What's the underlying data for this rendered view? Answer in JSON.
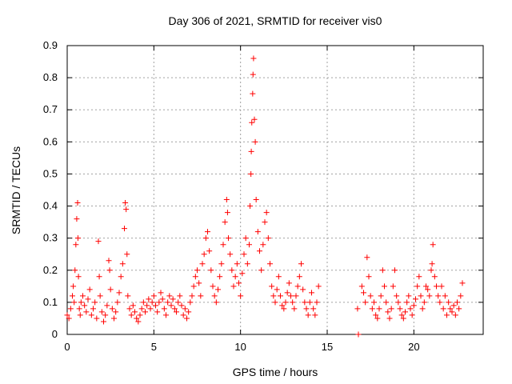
{
  "chart_data": {
    "type": "scatter",
    "title": "Day 306 of 2021, SRMTID for receiver vis0",
    "xlabel": "GPS time / hours",
    "ylabel": "SRMTID / TECUs",
    "xlim": [
      0,
      24
    ],
    "ylim": [
      0,
      0.9
    ],
    "x_ticks": [
      0,
      5,
      10,
      15,
      20
    ],
    "x_tick_labels": [
      "0",
      "5",
      "10",
      "15",
      "20"
    ],
    "y_ticks": [
      0,
      0.1,
      0.2,
      0.3,
      0.4,
      0.5,
      0.6,
      0.7,
      0.8,
      0.9
    ],
    "y_tick_labels": [
      "0",
      "0.1",
      "0.2",
      "0.3",
      "0.4",
      "0.5",
      "0.6",
      "0.7",
      "0.8",
      "0.9"
    ],
    "grid": true,
    "marker": "+",
    "color": "#ff0000",
    "series": [
      {
        "name": "vis0",
        "x": [
          0.0,
          0.1,
          0.2,
          0.3,
          0.35,
          0.4,
          0.45,
          0.5,
          0.55,
          0.6,
          0.62,
          0.65,
          0.7,
          0.75,
          0.8,
          0.9,
          1.0,
          1.1,
          1.2,
          1.3,
          1.4,
          1.5,
          1.6,
          1.7,
          1.8,
          1.85,
          1.9,
          2.0,
          2.1,
          2.2,
          2.3,
          2.4,
          2.45,
          2.5,
          2.6,
          2.7,
          2.8,
          2.9,
          3.0,
          3.1,
          3.2,
          3.3,
          3.35,
          3.4,
          3.45,
          3.5,
          3.6,
          3.7,
          3.8,
          3.9,
          4.0,
          4.1,
          4.2,
          4.3,
          4.4,
          4.5,
          4.6,
          4.7,
          4.8,
          4.9,
          5.0,
          5.1,
          5.2,
          5.3,
          5.4,
          5.5,
          5.6,
          5.7,
          5.8,
          5.9,
          6.0,
          6.1,
          6.2,
          6.3,
          6.4,
          6.5,
          6.6,
          6.7,
          6.8,
          6.9,
          7.0,
          7.1,
          7.2,
          7.3,
          7.4,
          7.5,
          7.6,
          7.7,
          7.8,
          7.9,
          8.0,
          8.1,
          8.2,
          8.3,
          8.4,
          8.5,
          8.6,
          8.7,
          8.8,
          8.9,
          9.0,
          9.1,
          9.2,
          9.25,
          9.3,
          9.4,
          9.5,
          9.6,
          9.7,
          9.8,
          9.9,
          10.0,
          10.1,
          10.2,
          10.3,
          10.4,
          10.5,
          10.55,
          10.6,
          10.62,
          10.65,
          10.7,
          10.72,
          10.75,
          10.8,
          10.85,
          10.9,
          11.0,
          11.1,
          11.2,
          11.3,
          11.4,
          11.5,
          11.6,
          11.7,
          11.8,
          11.9,
          12.0,
          12.1,
          12.2,
          12.3,
          12.4,
          12.5,
          12.6,
          12.7,
          12.8,
          12.9,
          13.0,
          13.1,
          13.2,
          13.3,
          13.4,
          13.5,
          13.6,
          13.7,
          13.8,
          13.9,
          14.0,
          14.1,
          14.2,
          14.3,
          14.4,
          14.5,
          16.75,
          16.8,
          17.0,
          17.1,
          17.2,
          17.3,
          17.4,
          17.5,
          17.6,
          17.7,
          17.8,
          17.9,
          18.0,
          18.1,
          18.2,
          18.3,
          18.4,
          18.5,
          18.6,
          18.7,
          18.8,
          18.9,
          19.0,
          19.1,
          19.2,
          19.3,
          19.4,
          19.5,
          19.6,
          19.7,
          19.8,
          19.9,
          20.0,
          20.1,
          20.2,
          20.3,
          20.4,
          20.5,
          20.6,
          20.7,
          20.8,
          20.9,
          21.0,
          21.05,
          21.1,
          21.2,
          21.3,
          21.4,
          21.5,
          21.6,
          21.7,
          21.8,
          21.9,
          22.0,
          22.1,
          22.2,
          22.3,
          22.4,
          22.5,
          22.6,
          22.7,
          22.8
        ],
        "y": [
          0.06,
          0.05,
          0.08,
          0.12,
          0.15,
          0.1,
          0.2,
          0.28,
          0.36,
          0.41,
          0.3,
          0.18,
          0.08,
          0.06,
          0.1,
          0.12,
          0.09,
          0.07,
          0.11,
          0.14,
          0.06,
          0.08,
          0.1,
          0.05,
          0.29,
          0.18,
          0.12,
          0.07,
          0.04,
          0.06,
          0.09,
          0.23,
          0.2,
          0.14,
          0.08,
          0.05,
          0.07,
          0.1,
          0.13,
          0.18,
          0.22,
          0.33,
          0.41,
          0.39,
          0.25,
          0.12,
          0.08,
          0.06,
          0.09,
          0.07,
          0.05,
          0.04,
          0.06,
          0.08,
          0.1,
          0.07,
          0.09,
          0.11,
          0.08,
          0.1,
          0.12,
          0.09,
          0.07,
          0.1,
          0.13,
          0.11,
          0.08,
          0.06,
          0.1,
          0.12,
          0.09,
          0.11,
          0.08,
          0.07,
          0.1,
          0.12,
          0.09,
          0.06,
          0.08,
          0.05,
          0.07,
          0.1,
          0.12,
          0.15,
          0.18,
          0.2,
          0.16,
          0.12,
          0.22,
          0.25,
          0.3,
          0.32,
          0.26,
          0.2,
          0.15,
          0.12,
          0.1,
          0.14,
          0.18,
          0.22,
          0.28,
          0.35,
          0.42,
          0.38,
          0.3,
          0.25,
          0.2,
          0.15,
          0.18,
          0.22,
          0.16,
          0.12,
          0.19,
          0.25,
          0.3,
          0.22,
          0.28,
          0.4,
          0.5,
          0.57,
          0.66,
          0.75,
          0.81,
          0.86,
          0.67,
          0.6,
          0.42,
          0.32,
          0.26,
          0.2,
          0.28,
          0.35,
          0.38,
          0.3,
          0.22,
          0.15,
          0.12,
          0.1,
          0.14,
          0.18,
          0.12,
          0.09,
          0.08,
          0.1,
          0.13,
          0.16,
          0.12,
          0.1,
          0.08,
          0.12,
          0.15,
          0.18,
          0.22,
          0.14,
          0.1,
          0.08,
          0.06,
          0.1,
          0.13,
          0.08,
          0.06,
          0.1,
          0.15,
          0.08,
          0.0,
          0.15,
          0.13,
          0.1,
          0.24,
          0.18,
          0.12,
          0.08,
          0.1,
          0.06,
          0.05,
          0.08,
          0.12,
          0.2,
          0.15,
          0.1,
          0.07,
          0.05,
          0.08,
          0.15,
          0.2,
          0.12,
          0.1,
          0.08,
          0.06,
          0.05,
          0.07,
          0.1,
          0.12,
          0.08,
          0.06,
          0.09,
          0.11,
          0.15,
          0.18,
          0.12,
          0.08,
          0.1,
          0.15,
          0.14,
          0.12,
          0.2,
          0.22,
          0.28,
          0.18,
          0.15,
          0.12,
          0.1,
          0.15,
          0.08,
          0.12,
          0.06,
          0.1,
          0.08,
          0.07,
          0.09,
          0.06,
          0.1,
          0.08,
          0.12,
          0.16
        ]
      }
    ]
  }
}
